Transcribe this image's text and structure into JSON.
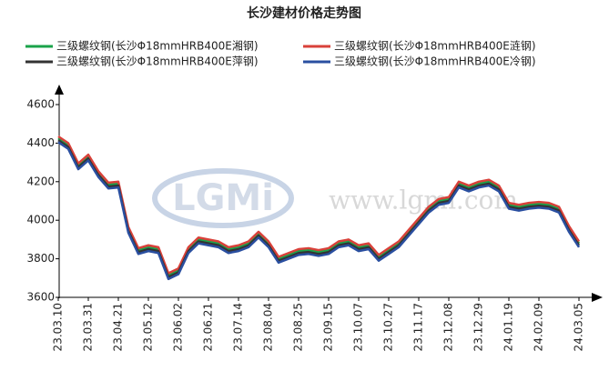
{
  "chart_data": {
    "type": "line",
    "title": "长沙建材价格走势图",
    "watermark": "www.lgmi.com",
    "logo": "LGMi",
    "categories": [
      "23.03.10",
      null,
      null,
      "23.03.31",
      null,
      null,
      "23.04.21",
      null,
      null,
      "23.05.12",
      null,
      null,
      "23.06.02",
      null,
      null,
      "23.06.21",
      null,
      null,
      "23.07.14",
      null,
      null,
      "23.08.04",
      null,
      null,
      "23.08.25",
      null,
      null,
      "23.09.15",
      null,
      null,
      "23.10.07",
      null,
      null,
      "23.10.27",
      null,
      null,
      "23.11.17",
      null,
      null,
      "23.12.08",
      null,
      null,
      "23.12.29",
      null,
      null,
      "24.01.19",
      null,
      null,
      "24.02.09",
      null,
      null,
      null,
      "24.03.05"
    ],
    "series": [
      {
        "name": "三级螺纹钢(长沙Φ18mmHRB400E湘钢)",
        "color": "#1aa34a",
        "values": [
          4425,
          4390,
          4285,
          4330,
          4245,
          4185,
          4190,
          3955,
          3845,
          3860,
          3850,
          3715,
          3740,
          3850,
          3900,
          3890,
          3880,
          3850,
          3860,
          3880,
          3930,
          3880,
          3800,
          3820,
          3840,
          3845,
          3835,
          3845,
          3880,
          3890,
          3860,
          3870,
          3810,
          3845,
          3880,
          3940,
          4000,
          4060,
          4100,
          4110,
          4190,
          4170,
          4190,
          4200,
          4170,
          4080,
          4070,
          4080,
          4085,
          4080,
          4060,
          3960,
          3880
        ]
      },
      {
        "name": "三级螺纹钢(长沙Φ18mmHRB400E涟钢)",
        "color": "#d9413a",
        "values": [
          4435,
          4400,
          4295,
          4340,
          4255,
          4195,
          4200,
          3965,
          3855,
          3870,
          3860,
          3725,
          3750,
          3860,
          3910,
          3900,
          3890,
          3860,
          3870,
          3890,
          3940,
          3890,
          3810,
          3830,
          3850,
          3855,
          3845,
          3855,
          3890,
          3900,
          3870,
          3880,
          3820,
          3855,
          3890,
          3950,
          4010,
          4070,
          4110,
          4120,
          4200,
          4180,
          4200,
          4210,
          4180,
          4090,
          4080,
          4090,
          4095,
          4090,
          4070,
          3970,
          3890
        ]
      },
      {
        "name": "三级螺纹钢(长沙Φ18mmHRB400E萍钢)",
        "color": "#333333",
        "values": [
          4415,
          4380,
          4275,
          4320,
          4235,
          4175,
          4180,
          3945,
          3835,
          3850,
          3840,
          3705,
          3730,
          3840,
          3890,
          3880,
          3870,
          3840,
          3850,
          3870,
          3920,
          3870,
          3790,
          3810,
          3830,
          3835,
          3825,
          3835,
          3870,
          3880,
          3850,
          3860,
          3800,
          3835,
          3870,
          3930,
          3990,
          4050,
          4090,
          4100,
          4180,
          4160,
          4180,
          4190,
          4160,
          4070,
          4060,
          4070,
          4075,
          4070,
          4050,
          3950,
          3870
        ]
      },
      {
        "name": "三级螺纹钢(长沙Φ18mmHRB400E冷钢)",
        "color": "#2a4fa0",
        "values": [
          4405,
          4370,
          4265,
          4310,
          4225,
          4165,
          4170,
          3935,
          3825,
          3840,
          3830,
          3695,
          3720,
          3830,
          3880,
          3870,
          3860,
          3830,
          3840,
          3860,
          3910,
          3860,
          3780,
          3800,
          3820,
          3825,
          3815,
          3825,
          3860,
          3870,
          3840,
          3850,
          3790,
          3825,
          3860,
          3920,
          3980,
          4040,
          4080,
          4090,
          4170,
          4150,
          4170,
          4180,
          4150,
          4060,
          4050,
          4060,
          4065,
          4060,
          4040,
          3940,
          3860
        ]
      }
    ],
    "ylim": [
      3600,
      4600
    ],
    "yticks": [
      3600,
      3800,
      4000,
      4200,
      4400,
      4600
    ]
  }
}
